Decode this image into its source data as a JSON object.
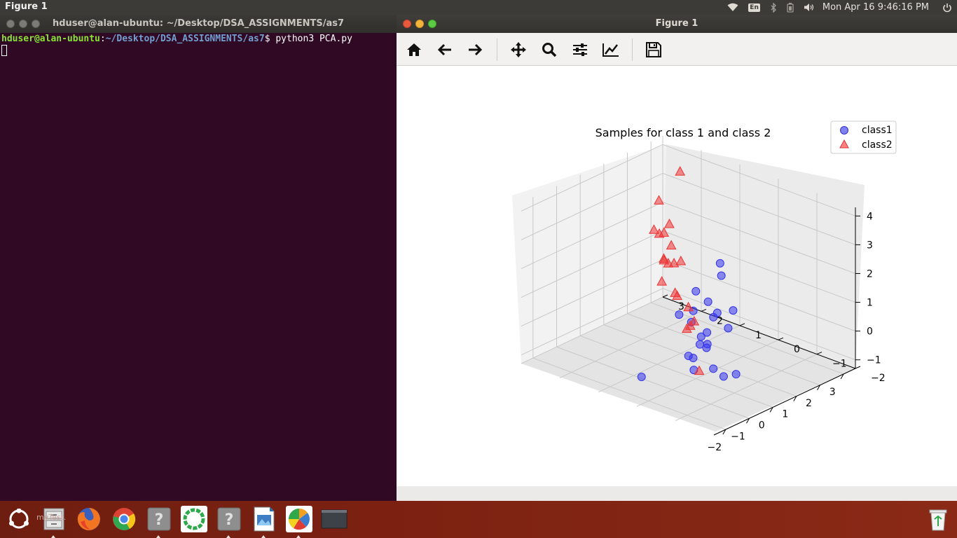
{
  "top_panel": {
    "app_title": "Figure 1",
    "keyboard": "En",
    "clock": "Mon Apr 16  9:46:16 PM"
  },
  "terminal": {
    "title": "hduser@alan-ubuntu: ~/Desktop/DSA_ASSIGNMENTS/as7",
    "prompt_user": "hduser@alan-ubuntu",
    "prompt_sep": ":",
    "prompt_path": "~/Desktop/DSA_ASSIGNMENTS/as7",
    "prompt_end": "$ ",
    "command": "python3 PCA.py"
  },
  "figure_window": {
    "title": "Figure 1",
    "toolbar": [
      "home-icon",
      "back-arrow-icon",
      "forward-arrow-icon",
      "pan-icon",
      "zoom-icon",
      "subplots-icon",
      "axes-edit-icon",
      "save-icon"
    ]
  },
  "dock": {
    "tooltip": "myTest.",
    "items": [
      "ubuntu-logo-icon",
      "files-icon",
      "firefox-icon",
      "chrome-icon",
      "unknown-app-icon",
      "spinner-app-icon",
      "unknown-app-icon-2",
      "image-viewer-icon",
      "python-figure-icon",
      "window-icon",
      "trash-icon"
    ]
  },
  "chart_data": {
    "type": "scatter3d",
    "title": "Samples for class 1 and class 2",
    "legend": {
      "placement": "top-right",
      "entries": [
        "class1",
        "class2"
      ]
    },
    "x_ticks": [
      "−2",
      "−1",
      "0",
      "1",
      "2",
      "3"
    ],
    "y_ticks": [
      "−2",
      "−1",
      "0",
      "1",
      "2",
      "3"
    ],
    "z_ticks": [
      "−1",
      "0",
      "1",
      "2",
      "3",
      "4"
    ],
    "xlim": [
      -2.5,
      3.5
    ],
    "ylim": [
      -2,
      3
    ],
    "zlim": [
      -1.3,
      4.3
    ],
    "grid": true,
    "colors": {
      "class1": "#3333ee",
      "class2": "#ee3333"
    },
    "series": [
      {
        "name": "class1",
        "marker": "circle",
        "points": [
          [
            -2.3,
            0,
            -0.35
          ],
          [
            -0.6,
            -0.3,
            -0.2
          ],
          [
            -0.8,
            -0.3,
            -0.05
          ],
          [
            -0.2,
            -0.4,
            0.05
          ],
          [
            0,
            -0.3,
            0.05
          ],
          [
            -0.9,
            -0.5,
            -0.4
          ],
          [
            -0.4,
            -0.7,
            -0.45
          ],
          [
            0.2,
            -0.6,
            -1
          ],
          [
            0.4,
            -0.8,
            -0.9
          ],
          [
            -0.1,
            -0.2,
            0.3
          ],
          [
            0.3,
            0.3,
            0.4
          ],
          [
            0.8,
            0.2,
            -0.1
          ],
          [
            0.6,
            0.8,
            0.3
          ],
          [
            1.4,
            0.4,
            0.1
          ],
          [
            1.5,
            0.6,
            0.5
          ],
          [
            1.9,
            0.5,
            1.3
          ],
          [
            2.5,
            0.9,
            1.3
          ],
          [
            1.8,
            1.1,
            0.5
          ],
          [
            2.4,
            0.5,
            -0.1
          ],
          [
            1.7,
            0.2,
            -0.3
          ],
          [
            1.4,
            0.3,
            0.3
          ],
          [
            0.5,
            0.2,
            -0.4
          ],
          [
            1.2,
            0.8,
            0.2
          ]
        ]
      },
      {
        "name": "class2",
        "marker": "triangle",
        "points": [
          [
            2.6,
            2,
            3.9
          ],
          [
            1.1,
            1.5,
            2.6
          ],
          [
            1,
            1,
            1.9
          ],
          [
            1.2,
            1.3,
            1.6
          ],
          [
            1.9,
            1.8,
            1.7
          ],
          [
            2.8,
            2.4,
            1.8
          ],
          [
            2.7,
            2.6,
            1.4
          ],
          [
            2.8,
            2.8,
            1.4
          ],
          [
            3.5,
            3.1,
            2
          ],
          [
            2.1,
            2,
            0.9
          ],
          [
            1.5,
            1.8,
            0.6
          ],
          [
            2.4,
            2.3,
            0.8
          ],
          [
            2.9,
            2.6,
            0.4
          ],
          [
            1.5,
            1.4,
            0.3
          ],
          [
            1.9,
            1.7,
            0.1
          ],
          [
            -1,
            -0.7,
            -0.3
          ],
          [
            0.6,
            0.6,
            -0.1
          ],
          [
            1.4,
            0.9,
            -0.3
          ],
          [
            1.4,
            1,
            -0.5
          ],
          [
            2.3,
            1.6,
            -0.5
          ]
        ]
      }
    ]
  }
}
